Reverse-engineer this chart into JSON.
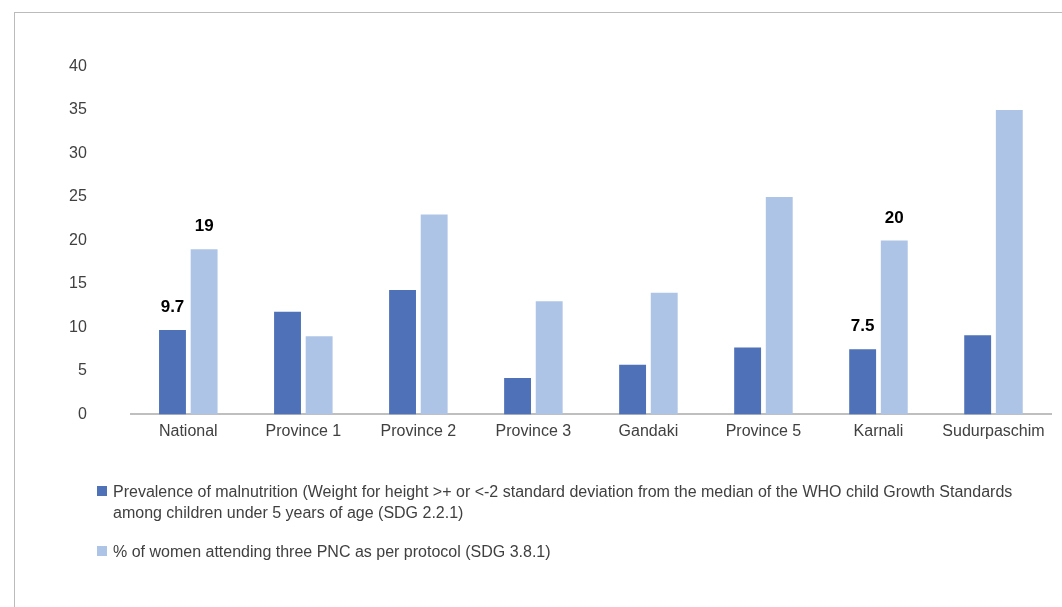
{
  "chart_data": {
    "type": "bar",
    "categories": [
      "National",
      "Province 1",
      "Province 2",
      "Province 3",
      "Gandaki",
      "Province 5",
      "Karnali",
      "Sudurpaschim"
    ],
    "series": [
      {
        "name": "Prevalence of malnutrition (Weight for height >+ or <-2 standard deviation from the median of the WHO child Growth Standards among children under 5 years of age (SDG 2.2.1)",
        "color": "#4e71b8",
        "values": [
          9.7,
          11.8,
          14.3,
          4.2,
          5.7,
          7.7,
          7.5,
          9.1
        ],
        "value_labels": [
          "9.7",
          null,
          null,
          null,
          null,
          null,
          "7.5",
          null
        ]
      },
      {
        "name": "% of women attending three PNC as per protocol (SDG 3.8.1)",
        "color": "#aec4e6",
        "values": [
          19,
          9,
          23,
          13,
          14,
          25,
          20,
          35
        ],
        "value_labels": [
          "19",
          null,
          null,
          null,
          null,
          null,
          "20",
          null
        ]
      }
    ],
    "ylim": [
      0,
      40
    ],
    "yticks": [
      0,
      5,
      10,
      15,
      20,
      25,
      30,
      35,
      40
    ],
    "grid": false,
    "legend": "bottom"
  }
}
